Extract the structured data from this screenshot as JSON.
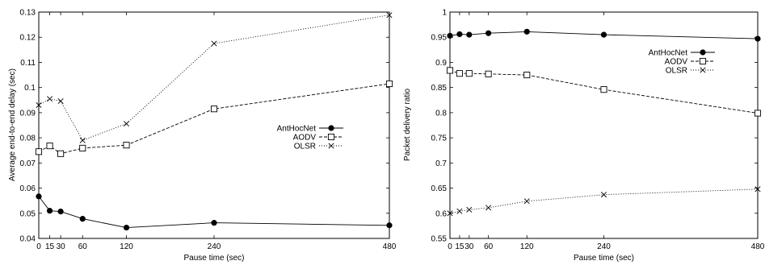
{
  "chart_data": [
    {
      "type": "line",
      "title": "",
      "xlabel": "Pause time (sec)",
      "ylabel": "Average end-to-end delay (sec)",
      "x": [
        0,
        15,
        30,
        60,
        120,
        240,
        480
      ],
      "x_tick_labels": [
        "0",
        "15",
        "30",
        "60",
        "120",
        "240",
        "480"
      ],
      "y_ticks": [
        "0.04",
        "0.05",
        "0.06",
        "0.07",
        "0.08",
        "0.09",
        "0.1",
        "0.11",
        "0.12",
        "0.13"
      ],
      "ylim": [
        0.04,
        0.13
      ],
      "grid": false,
      "legend_position": "right",
      "series": [
        {
          "name": "AntHocNet",
          "marker": "filled-circle",
          "line": "solid",
          "values": [
            0.0567,
            0.051,
            0.0507,
            0.0478,
            0.0443,
            0.0462,
            0.0452
          ]
        },
        {
          "name": "AODV",
          "marker": "open-square",
          "line": "dashed",
          "values": [
            0.0745,
            0.0768,
            0.0737,
            0.0759,
            0.0771,
            0.0915,
            0.1015
          ]
        },
        {
          "name": "OLSR",
          "marker": "cross",
          "line": "dotted",
          "values": [
            0.093,
            0.0955,
            0.0946,
            0.079,
            0.0856,
            0.1175,
            0.1288
          ]
        }
      ]
    },
    {
      "type": "line",
      "title": "",
      "xlabel": "Pause time (sec)",
      "ylabel": "Packet delivery ratio",
      "x": [
        0,
        15,
        30,
        60,
        120,
        240,
        480
      ],
      "x_tick_labels": [
        "0",
        "15",
        "30",
        "60",
        "120",
        "240",
        "480"
      ],
      "y_ticks": [
        "0.55",
        "0.6",
        "0.65",
        "0.7",
        "0.75",
        "0.8",
        "0.85",
        "0.9",
        "0.95",
        "1"
      ],
      "ylim": [
        0.55,
        1.0
      ],
      "grid": false,
      "legend_position": "top-right",
      "series": [
        {
          "name": "AntHocNet",
          "marker": "filled-circle",
          "line": "solid",
          "values": [
            0.953,
            0.956,
            0.955,
            0.958,
            0.961,
            0.955,
            0.947
          ]
        },
        {
          "name": "AODV",
          "marker": "open-square",
          "line": "dashed",
          "values": [
            0.884,
            0.878,
            0.878,
            0.877,
            0.875,
            0.846,
            0.799
          ]
        },
        {
          "name": "OLSR",
          "marker": "cross",
          "line": "dotted",
          "values": [
            0.6,
            0.604,
            0.607,
            0.611,
            0.624,
            0.637,
            0.648
          ]
        }
      ]
    }
  ]
}
